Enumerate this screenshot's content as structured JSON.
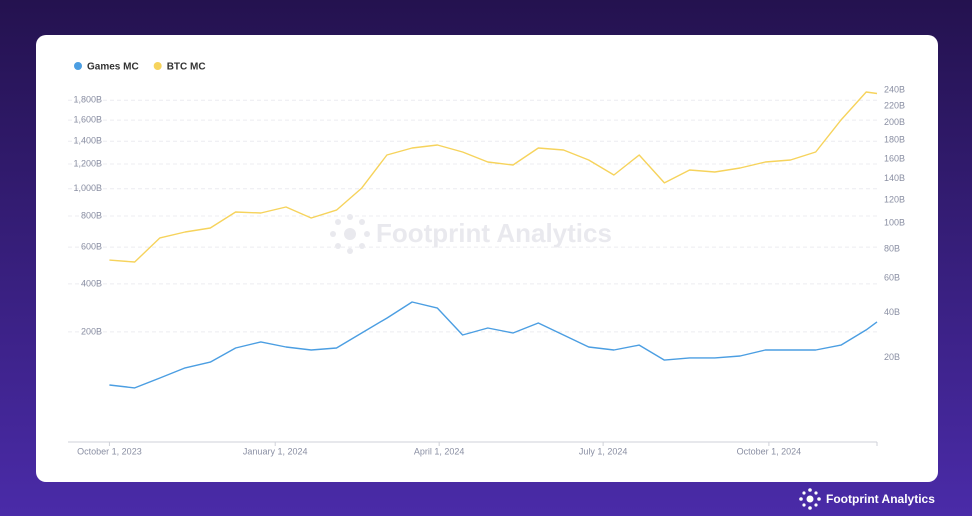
{
  "chart_data": {
    "type": "line",
    "watermark": "Footprint Analytics",
    "brand": "Footprint Analytics",
    "x": [
      "2023-10-01",
      "2023-10-15",
      "2023-10-29",
      "2023-11-12",
      "2023-11-26",
      "2023-12-10",
      "2023-12-24",
      "2024-01-07",
      "2024-01-21",
      "2024-02-04",
      "2024-02-18",
      "2024-03-03",
      "2024-03-17",
      "2024-03-31",
      "2024-04-14",
      "2024-04-28",
      "2024-05-12",
      "2024-05-26",
      "2024-06-09",
      "2024-06-23",
      "2024-07-07",
      "2024-07-21",
      "2024-08-04",
      "2024-08-18",
      "2024-09-01",
      "2024-09-15",
      "2024-09-29",
      "2024-10-13",
      "2024-10-27",
      "2024-11-10",
      "2024-11-24",
      "2024-11-30"
    ],
    "xlim": [
      "2023-09-08",
      "2024-11-30"
    ],
    "xticks": [
      {
        "value": "2023-10-01",
        "label": "October 1, 2023"
      },
      {
        "value": "2024-01-01",
        "label": "January 1, 2024"
      },
      {
        "value": "2024-04-01",
        "label": "April 1, 2024"
      },
      {
        "value": "2024-07-01",
        "label": "July 1, 2024"
      },
      {
        "value": "2024-10-01",
        "label": "October 1, 2024"
      }
    ],
    "yscale": "sqrt",
    "ylim": [
      0.5,
      1950
    ],
    "yticks": [
      {
        "value": 200,
        "label": "200B"
      },
      {
        "value": 400,
        "label": "400B"
      },
      {
        "value": 600,
        "label": "600B"
      },
      {
        "value": 800,
        "label": "800B"
      },
      {
        "value": 1000,
        "label": "1,000B"
      },
      {
        "value": 1200,
        "label": "1,200B"
      },
      {
        "value": 1400,
        "label": "1,400B"
      },
      {
        "value": 1600,
        "label": "1,600B"
      },
      {
        "value": 1800,
        "label": "1,800B"
      }
    ],
    "y2lim": [
      1,
      245
    ],
    "y2ticks": [
      {
        "value": 20,
        "label": "20B"
      },
      {
        "value": 40,
        "label": "40B"
      },
      {
        "value": 60,
        "label": "60B"
      },
      {
        "value": 80,
        "label": "80B"
      },
      {
        "value": 100,
        "label": "100B"
      },
      {
        "value": 120,
        "label": "120B"
      },
      {
        "value": 140,
        "label": "140B"
      },
      {
        "value": 160,
        "label": "160B"
      },
      {
        "value": 180,
        "label": "180B"
      },
      {
        "value": 200,
        "label": "200B"
      },
      {
        "value": 220,
        "label": "220B"
      },
      {
        "value": 240,
        "label": "240B"
      }
    ],
    "grid": true,
    "series": [
      {
        "name": "Games MC",
        "color": "#4b9ee2",
        "axis": "y2",
        "values": [
          11.2,
          10.4,
          13.2,
          16.4,
          18.4,
          23.7,
          26.2,
          24.1,
          22.9,
          23.7,
          30.1,
          37.2,
          45.7,
          42.4,
          29.2,
          32.4,
          30.1,
          34.8,
          29.2,
          24.1,
          22.9,
          24.9,
          19.1,
          19.9,
          19.9,
          20.6,
          22.9,
          22.9,
          22.9,
          24.9,
          31.5,
          35.3
        ]
      },
      {
        "name": "BTC MC",
        "color": "#f6d35c",
        "values": [
          525,
          514,
          656,
          694,
          720,
          828,
          821,
          864,
          787,
          842,
          1005,
          1277,
          1339,
          1366,
          1303,
          1217,
          1191,
          1339,
          1321,
          1234,
          1109,
          1277,
          1045,
          1150,
          1133,
          1166,
          1217,
          1234,
          1303,
          1601,
          1886,
          1870
        ]
      }
    ]
  }
}
